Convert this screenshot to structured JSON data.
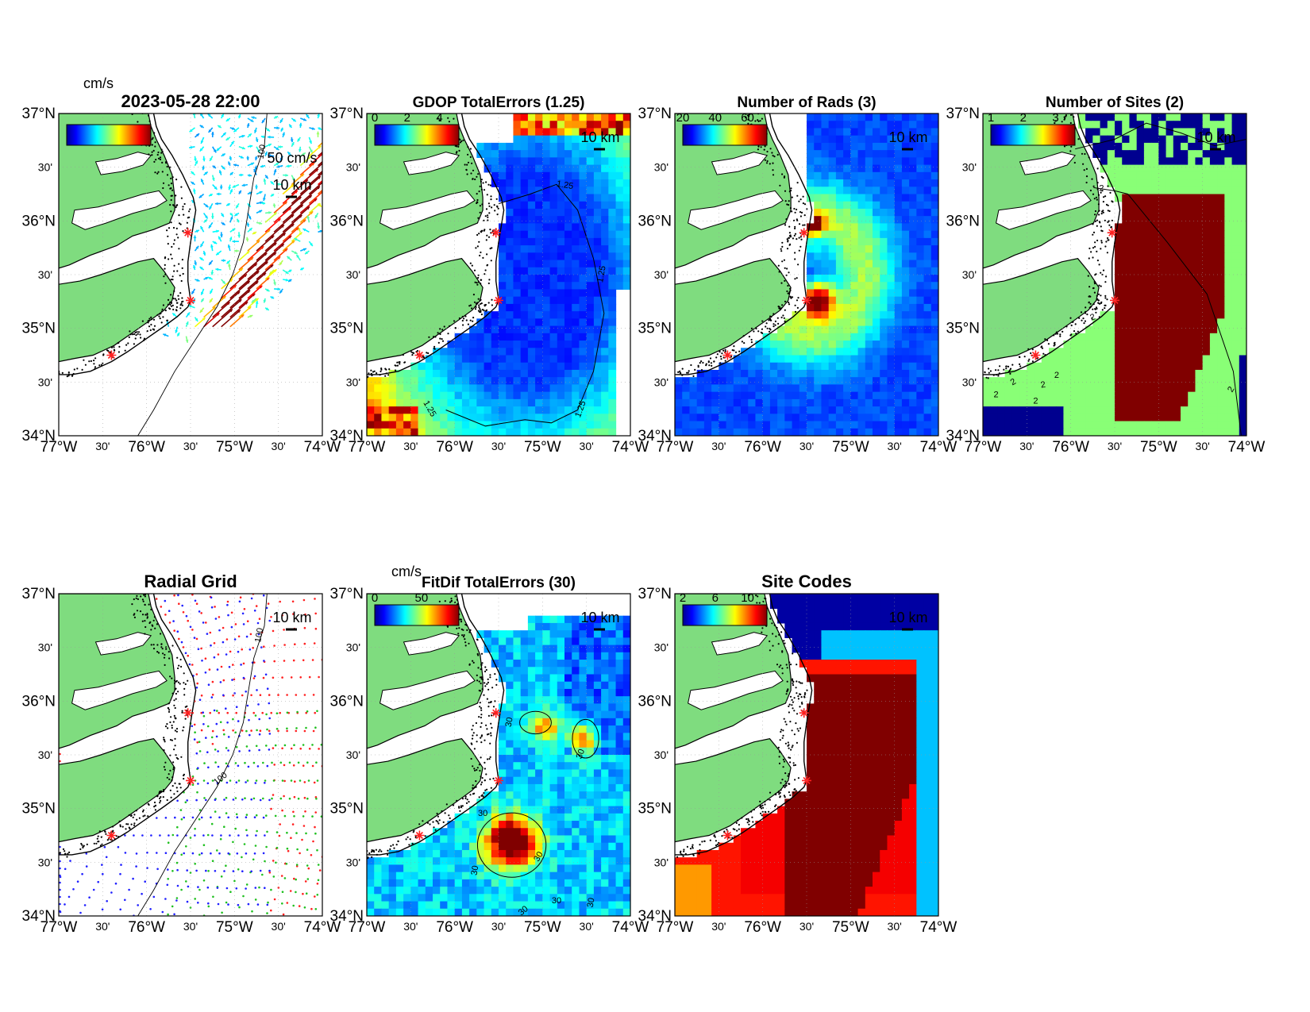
{
  "figure": {
    "colors": {
      "land": "#7fdc7f",
      "site_marker": "#ff2020",
      "coast": "#000000"
    },
    "common": {
      "lat_major": [
        "37°N",
        "36°N",
        "35°N",
        "34°N"
      ],
      "lat_minor": [
        "30'",
        "30'",
        "30'"
      ],
      "lon_major": [
        "77°W",
        "76°W",
        "75°W",
        "74°W"
      ],
      "lon_minor": [
        "30'",
        "30'",
        "30'"
      ],
      "scale_label": "10 km"
    },
    "panels": [
      {
        "id": "currents",
        "title": "2023-05-28 22:00",
        "colorbar_unit": "cm/s",
        "colorbar_ticks": [],
        "arrow_label": "50 cm/s",
        "contour_labels": [
          "100"
        ],
        "field": "currents"
      },
      {
        "id": "gdop",
        "title": "GDOP TotalErrors (1.25)",
        "colorbar_unit": "",
        "colorbar_ticks": [
          "0",
          "2",
          "4"
        ],
        "contour_labels": [
          "1.25",
          "1.25",
          "1.25",
          "1.25"
        ],
        "field": "gdop"
      },
      {
        "id": "nrads",
        "title": "Number of Rads (3)",
        "colorbar_unit": "",
        "colorbar_ticks": [
          "20",
          "40",
          "60"
        ],
        "contour_labels": [],
        "field": "nrads"
      },
      {
        "id": "nsites",
        "title": "Number of Sites (2)",
        "colorbar_unit": "",
        "colorbar_ticks": [
          "1",
          "2",
          "3"
        ],
        "contour_labels": [
          "2",
          "2",
          "2",
          "2",
          "2",
          "2",
          "2",
          "2"
        ],
        "field": "nsites"
      },
      {
        "id": "radial-grid",
        "title": "Radial Grid",
        "colorbar_unit": "",
        "colorbar_ticks": [],
        "contour_labels": [
          "100",
          "100"
        ],
        "field": "radial"
      },
      {
        "id": "fitdif",
        "title": "FitDif TotalErrors (30)",
        "colorbar_unit": "cm/s",
        "colorbar_ticks": [
          "0",
          "50"
        ],
        "contour_labels": [
          "30",
          "30",
          "30",
          "30",
          "30",
          "30",
          "30",
          "30"
        ],
        "field": "fitdif"
      },
      {
        "id": "site-codes",
        "title": "Site Codes",
        "colorbar_unit": "",
        "colorbar_ticks": [
          "2",
          "6",
          "10"
        ],
        "contour_labels": [],
        "field": "sitecodes"
      }
    ]
  }
}
